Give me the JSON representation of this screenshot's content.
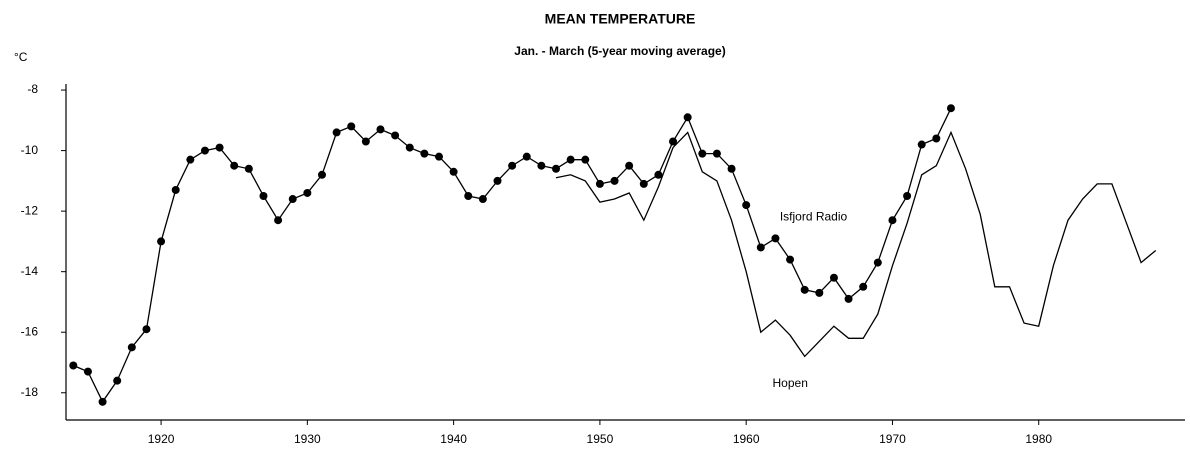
{
  "chart_data": {
    "type": "line",
    "title": "MEAN TEMPERATURE",
    "subtitle": "Jan. - March  (5-year moving average)",
    "y_label": "°C",
    "xlim": [
      1913.5,
      1990
    ],
    "xticks": [
      1920,
      1930,
      1940,
      1950,
      1960,
      1970,
      1980
    ],
    "ylim": [
      -18.9,
      -7.8
    ],
    "yticks": [
      -8,
      -10,
      -12,
      -14,
      -16,
      -18
    ],
    "series": [
      {
        "name": "Isfjord Radio",
        "color": "#000000",
        "markers": true,
        "x": [
          1914,
          1915,
          1916,
          1917,
          1918,
          1919,
          1920,
          1921,
          1922,
          1923,
          1924,
          1925,
          1926,
          1927,
          1928,
          1929,
          1930,
          1931,
          1932,
          1933,
          1934,
          1935,
          1936,
          1937,
          1938,
          1939,
          1940,
          1941,
          1942,
          1943,
          1944,
          1945,
          1946,
          1947,
          1948,
          1949,
          1950,
          1951,
          1952,
          1953,
          1954,
          1955,
          1956,
          1957,
          1958,
          1959,
          1960,
          1961,
          1962,
          1963,
          1964,
          1965,
          1966,
          1967,
          1968,
          1969,
          1970,
          1971,
          1972,
          1973,
          1974
        ],
        "values": [
          -17.1,
          -17.3,
          -18.3,
          -17.6,
          -16.5,
          -15.9,
          -13.0,
          -11.3,
          -10.3,
          -10.0,
          -9.9,
          -10.5,
          -10.6,
          -11.5,
          -12.3,
          -11.6,
          -11.4,
          -10.8,
          -9.4,
          -9.2,
          -9.7,
          -9.3,
          -9.5,
          -9.9,
          -10.1,
          -10.2,
          -10.7,
          -11.5,
          -11.6,
          -11.0,
          -10.5,
          -10.2,
          -10.5,
          -10.6,
          -10.3,
          -10.3,
          -11.1,
          -11.0,
          -10.5,
          -11.1,
          -10.8,
          -9.7,
          -8.9,
          -10.1,
          -10.1,
          -10.6,
          -11.8,
          -13.2,
          -12.9,
          -13.6,
          -14.6,
          -14.7,
          -14.2,
          -14.9,
          -14.5,
          -13.7,
          -12.3,
          -11.5,
          -9.8,
          -9.6,
          -8.6
        ]
      },
      {
        "name": "Hopen",
        "color": "#000000",
        "markers": false,
        "x": [
          1947,
          1948,
          1949,
          1950,
          1951,
          1952,
          1953,
          1954,
          1955,
          1956,
          1957,
          1958,
          1959,
          1960,
          1961,
          1962,
          1963,
          1964,
          1965,
          1966,
          1967,
          1968,
          1969,
          1970,
          1971,
          1972,
          1973,
          1974,
          1975,
          1976,
          1977,
          1978,
          1979,
          1980,
          1981,
          1982,
          1983,
          1984,
          1985,
          1986,
          1987,
          1988
        ],
        "values": [
          -10.9,
          -10.8,
          -11.0,
          -11.7,
          -11.6,
          -11.4,
          -12.3,
          -11.2,
          -9.9,
          -9.4,
          -10.7,
          -11.0,
          -12.3,
          -14.0,
          -16.0,
          -15.6,
          -16.1,
          -16.8,
          -16.3,
          -15.8,
          -16.2,
          -16.2,
          -15.4,
          -13.8,
          -12.4,
          -10.8,
          -10.5,
          -9.4,
          -10.6,
          -12.1,
          -14.5,
          -14.5,
          -15.7,
          -15.8,
          -13.8,
          -12.3,
          -11.6,
          -11.1,
          -11.1,
          -12.4,
          -13.7,
          -13.3
        ]
      }
    ]
  }
}
